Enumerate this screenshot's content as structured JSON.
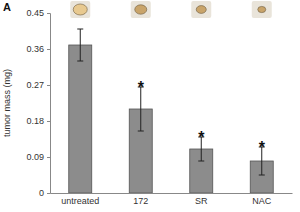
{
  "chart_data": {
    "type": "bar",
    "title": "A",
    "y_label": "tumor mass (mg)",
    "categories": [
      "untreated",
      "172",
      "SR",
      "NAC"
    ],
    "values": [
      0.37,
      0.21,
      0.11,
      0.08
    ],
    "errors": [
      0.04,
      0.055,
      0.03,
      0.035
    ],
    "annotations": [
      {
        "x": "172",
        "text": "*"
      },
      {
        "x": "SR",
        "text": "*"
      },
      {
        "x": "NAC",
        "text": "*"
      }
    ],
    "color": "#8c8c8c",
    "ylim": [
      0,
      0.45
    ],
    "yticks": [
      0,
      0.09,
      0.18,
      0.27,
      0.36,
      0.45
    ],
    "grid": false
  }
}
